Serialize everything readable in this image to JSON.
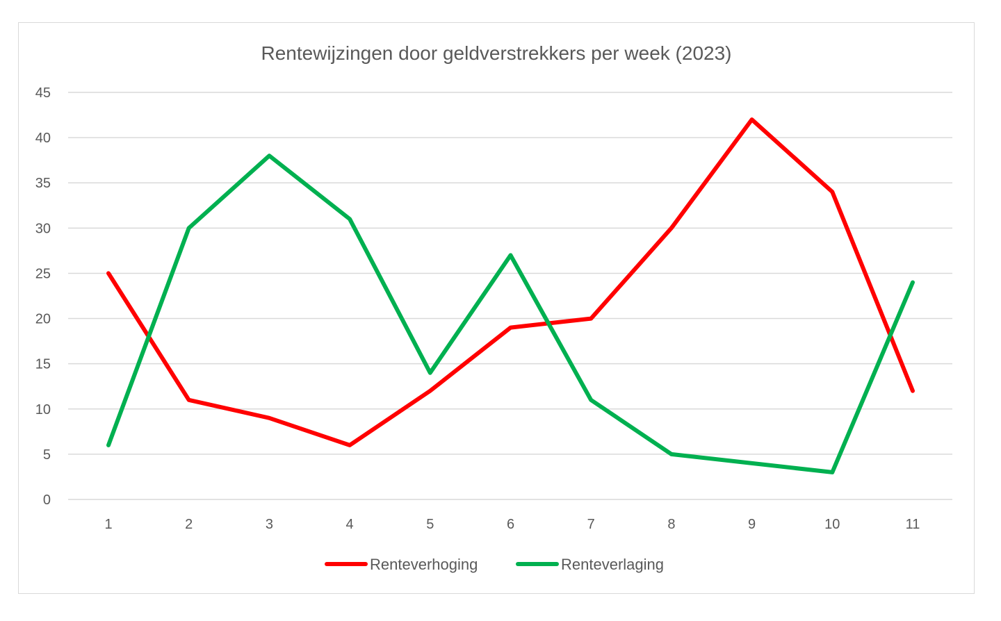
{
  "chart_data": {
    "type": "line",
    "title": "Rentewijzingen door geldverstrekkers per week (2023)",
    "xlabel": "",
    "ylabel": "",
    "categories": [
      "1",
      "2",
      "3",
      "4",
      "5",
      "6",
      "7",
      "8",
      "9",
      "10",
      "11"
    ],
    "y_ticks": [
      "0",
      "5",
      "10",
      "15",
      "20",
      "25",
      "30",
      "35",
      "40",
      "45"
    ],
    "ylim": [
      0,
      45
    ],
    "grid": "horizontal",
    "legend_position": "bottom",
    "series": [
      {
        "name": "Renteverhoging",
        "color": "#ff0000",
        "values": [
          25,
          11,
          9,
          6,
          12,
          19,
          20,
          30,
          42,
          34,
          12
        ]
      },
      {
        "name": "Renteverlaging",
        "color": "#00b050",
        "values": [
          6,
          30,
          38,
          31,
          14,
          27,
          11,
          5,
          4,
          3,
          24
        ]
      }
    ]
  }
}
